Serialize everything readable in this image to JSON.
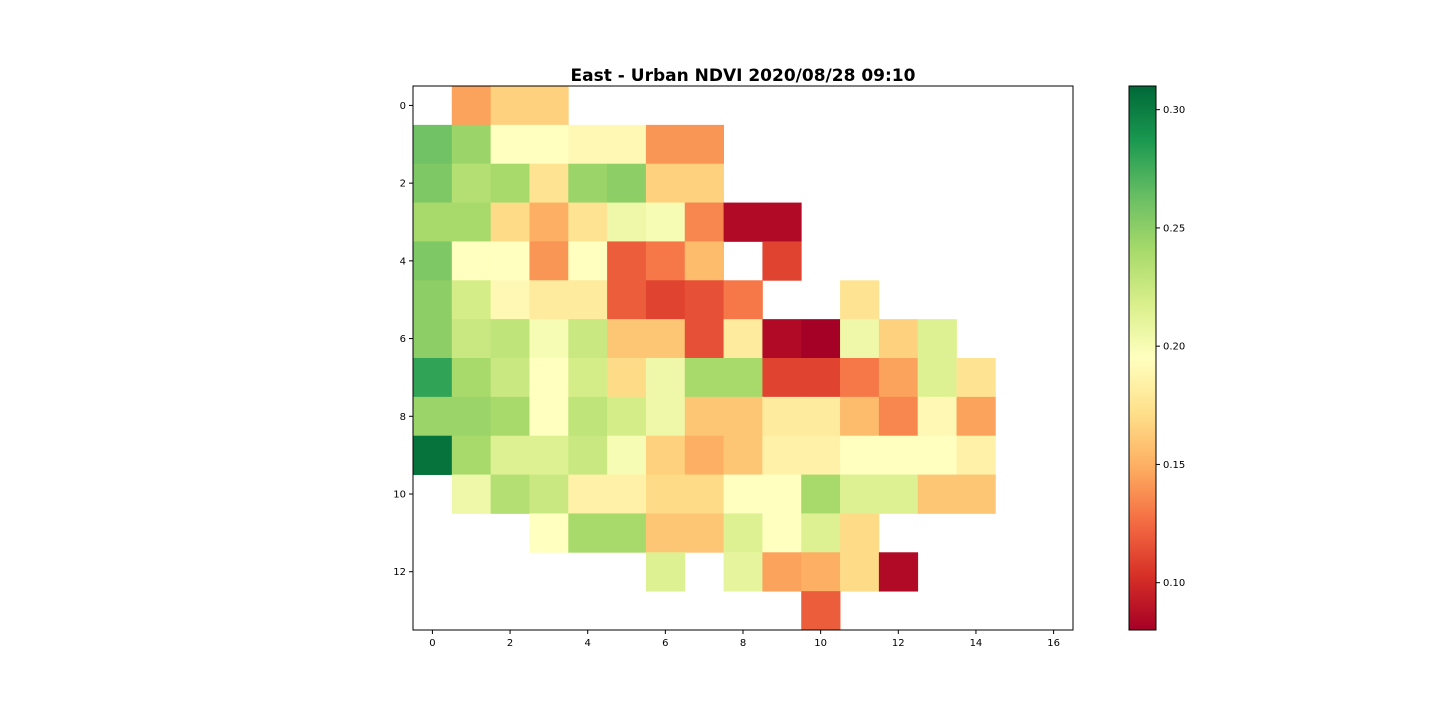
{
  "chart_data": {
    "type": "heatmap",
    "title": "East - Urban NDVI 2020/08/28 09:10",
    "xlabel": "",
    "ylabel": "",
    "colormap": "RdYlGn",
    "vmin": 0.08,
    "vmax": 0.31,
    "xlim": [
      -0.5,
      16.5
    ],
    "ylim": [
      13.5,
      -0.5
    ],
    "x_ticks": [
      0,
      2,
      4,
      6,
      8,
      10,
      12,
      14,
      16
    ],
    "y_ticks": [
      0,
      2,
      4,
      6,
      8,
      10,
      12
    ],
    "colorbar_ticks": [
      0.1,
      0.15,
      0.2,
      0.25,
      0.3
    ],
    "colorbar_tick_labels": [
      "0.10",
      "0.15",
      "0.20",
      "0.25",
      "0.30"
    ],
    "grid": false,
    "rows": [
      [
        null,
        0.145,
        0.165,
        0.165,
        null,
        null,
        null,
        null,
        null,
        null,
        null,
        null,
        null,
        null,
        null,
        null,
        null
      ],
      [
        0.26,
        0.245,
        0.195,
        0.195,
        0.19,
        0.19,
        0.14,
        0.14,
        null,
        null,
        null,
        null,
        null,
        null,
        null,
        null,
        null
      ],
      [
        0.255,
        0.235,
        0.24,
        0.175,
        0.245,
        0.25,
        0.165,
        0.165,
        null,
        null,
        null,
        null,
        null,
        null,
        null,
        null,
        null
      ],
      [
        0.24,
        0.24,
        0.17,
        0.15,
        0.175,
        0.205,
        0.2,
        0.135,
        0.085,
        0.085,
        null,
        null,
        null,
        null,
        null,
        null,
        null
      ],
      [
        0.255,
        0.195,
        0.195,
        0.14,
        0.195,
        0.12,
        0.13,
        0.155,
        null,
        0.11,
        null,
        null,
        null,
        null,
        null,
        null,
        null
      ],
      [
        0.25,
        0.22,
        0.19,
        0.18,
        0.18,
        0.12,
        0.11,
        0.115,
        0.13,
        null,
        null,
        0.175,
        null,
        null,
        null,
        null,
        null
      ],
      [
        0.25,
        0.225,
        0.23,
        0.2,
        0.225,
        0.16,
        0.16,
        0.115,
        0.18,
        0.085,
        0.08,
        0.205,
        0.165,
        0.215,
        null,
        null,
        null
      ],
      [
        0.28,
        0.24,
        0.225,
        0.195,
        0.22,
        0.17,
        0.205,
        0.24,
        0.24,
        0.11,
        0.11,
        0.13,
        0.145,
        0.215,
        0.175,
        null,
        null
      ],
      [
        0.245,
        0.245,
        0.24,
        0.195,
        0.23,
        0.22,
        0.205,
        0.16,
        0.16,
        0.18,
        0.18,
        0.155,
        0.135,
        0.19,
        0.145,
        null,
        null
      ],
      [
        0.305,
        0.24,
        0.215,
        0.215,
        0.225,
        0.2,
        0.165,
        0.15,
        0.16,
        0.185,
        0.185,
        0.195,
        0.195,
        0.195,
        0.185,
        null,
        null
      ],
      [
        null,
        0.205,
        0.235,
        0.225,
        0.185,
        0.185,
        0.17,
        0.17,
        0.195,
        0.195,
        0.24,
        0.215,
        0.215,
        0.16,
        0.16,
        null,
        null
      ],
      [
        null,
        null,
        null,
        0.195,
        0.24,
        0.24,
        0.16,
        0.16,
        0.215,
        0.195,
        0.215,
        0.17,
        null,
        null,
        null,
        null,
        null
      ],
      [
        null,
        null,
        null,
        null,
        null,
        null,
        0.215,
        null,
        0.21,
        0.145,
        0.15,
        0.17,
        0.085,
        null,
        null,
        null,
        null
      ],
      [
        null,
        null,
        null,
        null,
        null,
        null,
        null,
        null,
        null,
        null,
        0.12,
        null,
        null,
        null,
        null,
        null,
        null
      ]
    ]
  }
}
